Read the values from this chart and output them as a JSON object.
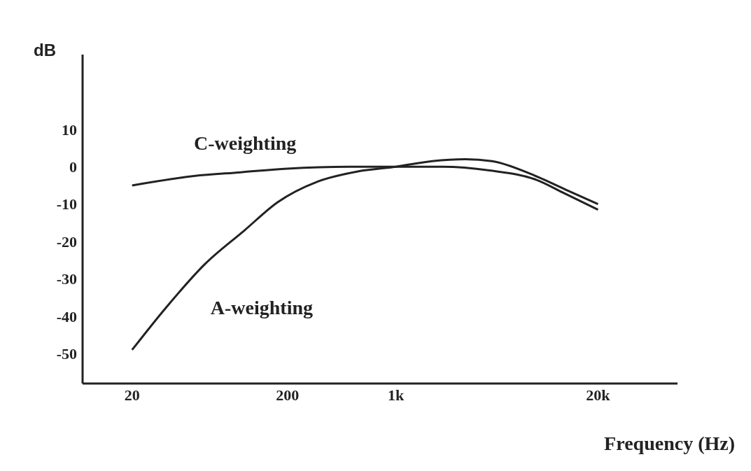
{
  "chart_data": {
    "type": "line",
    "xlabel": "Frequency (Hz)",
    "ylabel": "dB",
    "log": "x",
    "xlim": [
      9.6,
      65000
    ],
    "xticks": [
      20,
      200,
      {
        "value": 1000,
        "label": "1k"
      },
      {
        "value": 20000,
        "label": "20k"
      }
    ],
    "ylim": [
      -58,
      30
    ],
    "yticks": [
      10,
      0,
      -10,
      -20,
      -30,
      -40,
      -50
    ],
    "grid": false,
    "legend": false,
    "marker": "none",
    "line_style": "solid",
    "series": [
      {
        "name": "C-weighting",
        "color": "#222222",
        "x": [
          20,
          50,
          100,
          200,
          500,
          1000,
          2000,
          4000,
          8000,
          12000,
          20000
        ],
        "values": [
          -5,
          -2.5,
          -1.5,
          -0.5,
          0,
          0,
          0,
          -1,
          -3.5,
          -7,
          -11.5
        ]
      },
      {
        "name": "A-weighting",
        "color": "#222222",
        "x": [
          20,
          32.6,
          59,
          106,
          173,
          312,
          560,
          1000,
          1714,
          2800,
          4150,
          7450,
          12200,
          20000
        ],
        "values": [
          -49,
          -38,
          -26,
          -17,
          -9.5,
          -4,
          -1.3,
          0,
          1.5,
          2,
          1.5,
          -2,
          -6,
          -10
        ]
      }
    ]
  }
}
